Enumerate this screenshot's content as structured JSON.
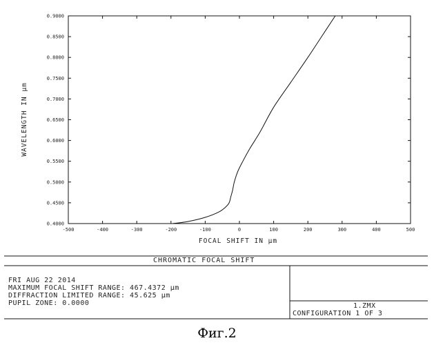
{
  "chart_data": {
    "type": "line",
    "title": "",
    "xlabel": "FOCAL SHIFT IN μm",
    "ylabel": "WAVELENGTH IN μm",
    "xlim": [
      -500,
      500
    ],
    "ylim": [
      0.4,
      0.9
    ],
    "x_ticks": [
      "-500",
      "-400",
      "-300",
      "-200",
      "-100",
      "0",
      "100",
      "200",
      "300",
      "400",
      "500"
    ],
    "y_ticks": [
      "0.4000",
      "0.4500",
      "0.5000",
      "0.5500",
      "0.6000",
      "0.6500",
      "0.7000",
      "0.7500",
      "0.8000",
      "0.8500",
      "0.9000"
    ],
    "grid": false,
    "series": [
      {
        "x": [
          -195,
          -150,
          -100,
          -60,
          -40,
          -30,
          -25,
          -20,
          -15,
          -5,
          10,
          30,
          60,
          100,
          150,
          200,
          240,
          280
        ],
        "y": [
          0.4,
          0.405,
          0.415,
          0.428,
          0.44,
          0.45,
          0.465,
          0.48,
          0.5,
          0.525,
          0.55,
          0.58,
          0.62,
          0.68,
          0.74,
          0.8,
          0.85,
          0.9
        ]
      }
    ]
  },
  "footer": {
    "title": "CHROMATIC FOCAL SHIFT",
    "info_lines": [
      "FRI AUG 22 2014",
      "MAXIMUM FOCAL SHIFT RANGE: 467.4372 μm",
      "DIFFRACTION LIMITED RANGE: 45.625 μm",
      "PUPIL ZONE: 0.0000"
    ],
    "file": "1.ZMX",
    "configuration": "CONFIGURATION 1 OF 3"
  },
  "caption": "Фиг.2"
}
